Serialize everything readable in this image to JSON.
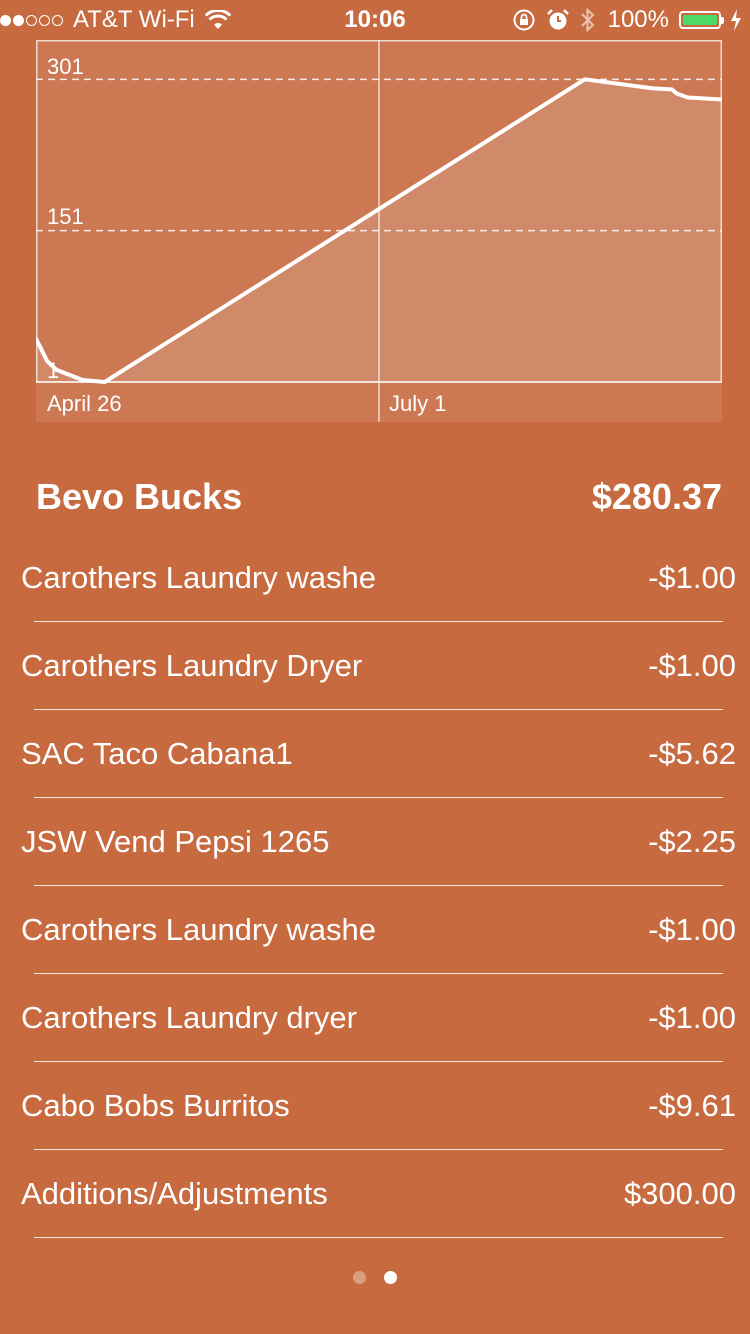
{
  "status_bar": {
    "signal_filled": 2,
    "signal_total": 5,
    "carrier": "AT&T Wi-Fi",
    "time": "10:06",
    "battery": "100%",
    "icons": [
      "wifi-icon",
      "orientation-lock-icon",
      "alarm-icon",
      "bluetooth-icon",
      "battery-icon",
      "charging-icon"
    ],
    "battery_fill_color": "#4cd964"
  },
  "chart_data": {
    "type": "area",
    "y_ticks": [
      "301",
      "151",
      "1"
    ],
    "x_ticks": [
      "April 26",
      "July 1"
    ],
    "ylim": [
      1,
      340
    ],
    "grid": true,
    "points": [
      [
        0,
        44
      ],
      [
        0.016,
        22
      ],
      [
        0.03,
        13
      ],
      [
        0.068,
        3
      ],
      [
        0.1,
        1
      ],
      [
        0.8,
        301
      ],
      [
        0.9,
        292
      ],
      [
        0.927,
        291
      ],
      [
        0.934,
        287
      ],
      [
        0.95,
        283
      ],
      [
        1.0,
        281
      ]
    ],
    "line_color": "#ffffff",
    "fill_color": "#d08a69",
    "background_color": "#cc7853"
  },
  "account": {
    "name": "Bevo Bucks",
    "balance": "$280.37"
  },
  "transactions": [
    {
      "name": "Carothers Laundry washe",
      "amount": "-$1.00"
    },
    {
      "name": "Carothers Laundry Dryer",
      "amount": "-$1.00"
    },
    {
      "name": "SAC Taco Cabana1",
      "amount": "-$5.62"
    },
    {
      "name": "JSW Vend Pepsi 1265",
      "amount": "-$2.25"
    },
    {
      "name": "Carothers Laundry washe",
      "amount": "-$1.00"
    },
    {
      "name": "Carothers Laundry dryer",
      "amount": "-$1.00"
    },
    {
      "name": "Cabo Bobs Burritos",
      "amount": "-$9.61"
    },
    {
      "name": "Additions/Adjustments",
      "amount": "$300.00"
    }
  ],
  "pager": {
    "pages": 2,
    "current": 2
  }
}
